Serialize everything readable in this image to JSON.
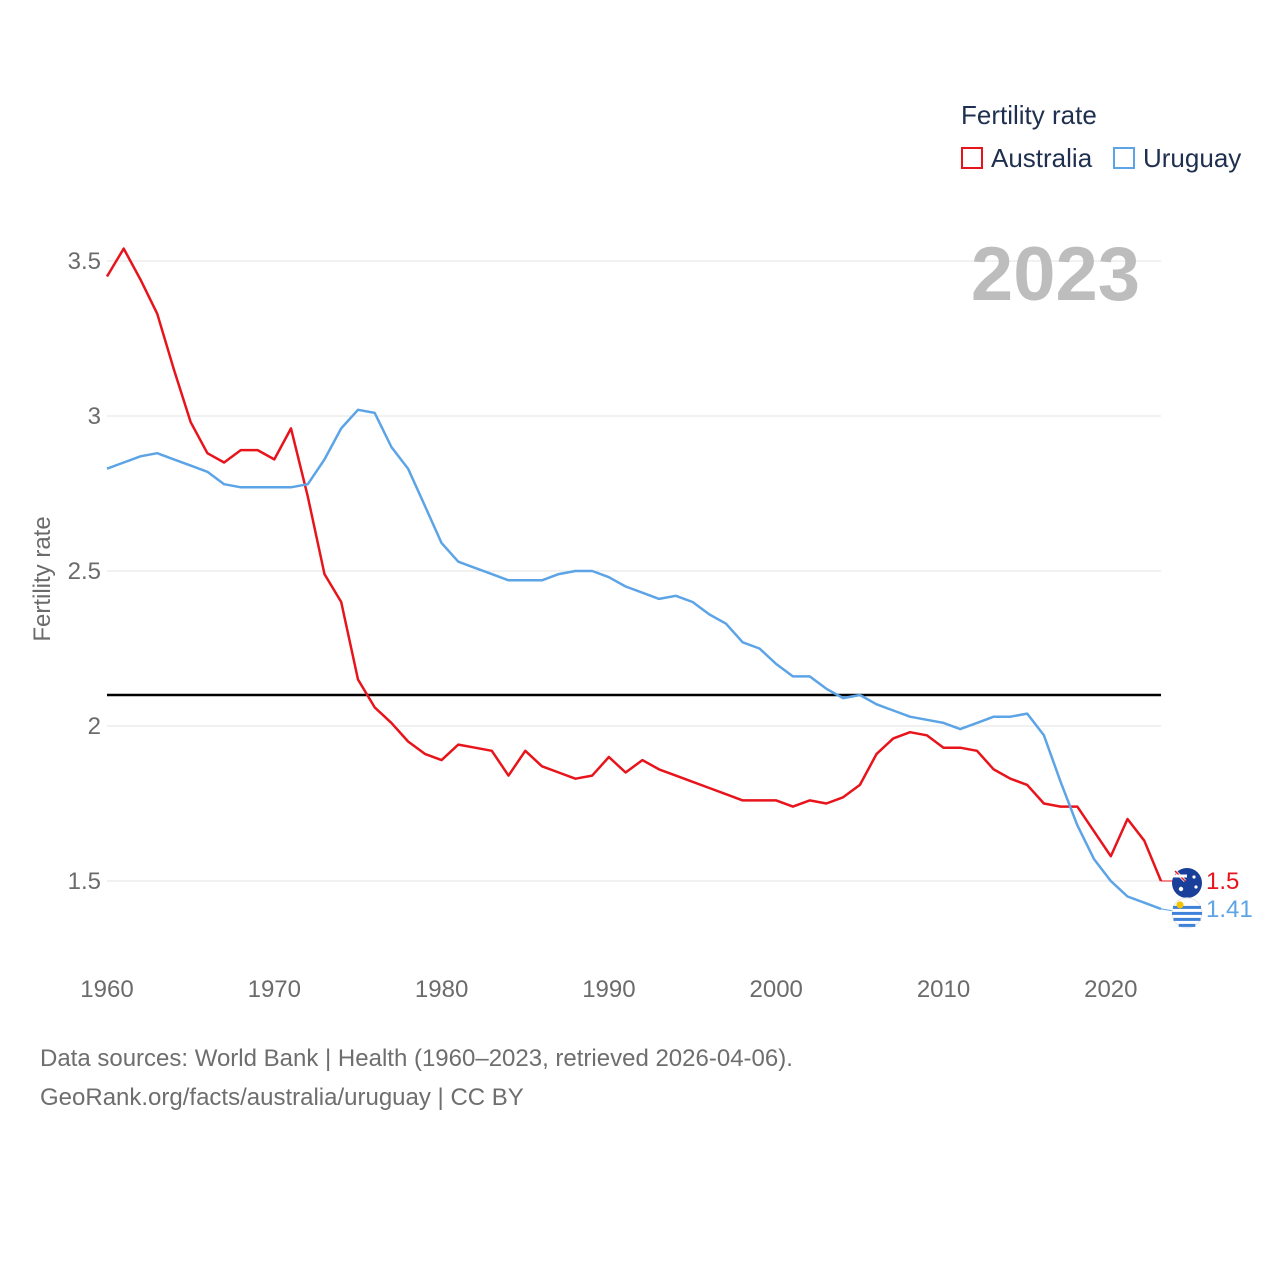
{
  "legend": {
    "title": "Fertility rate",
    "items": [
      {
        "label": "Australia",
        "color": "#e8141b"
      },
      {
        "label": "Uruguay",
        "color": "#5ca4e6"
      }
    ]
  },
  "footer": {
    "line1": "Data sources: World Bank | Health (1960–2023, retrieved 2026-04-06).",
    "line2": "GeoRank.org/facts/australia/uruguay | CC BY"
  },
  "chart_data": {
    "type": "line",
    "title": "Fertility rate",
    "year_label": "2023",
    "xlabel": "",
    "ylabel": "Fertility rate",
    "xlim": [
      1960,
      2023
    ],
    "ylim": [
      1.3,
      3.6
    ],
    "x_ticks": [
      1960,
      1970,
      1980,
      1990,
      2000,
      2010,
      2020
    ],
    "y_ticks": [
      1.5,
      2,
      2.5,
      3,
      3.5
    ],
    "y_tick_labels": [
      "1.5",
      "2",
      "2.5",
      "3",
      "3.5"
    ],
    "reference_line": 2.1,
    "x": [
      1960,
      1961,
      1962,
      1963,
      1964,
      1965,
      1966,
      1967,
      1968,
      1969,
      1970,
      1971,
      1972,
      1973,
      1974,
      1975,
      1976,
      1977,
      1978,
      1979,
      1980,
      1981,
      1982,
      1983,
      1984,
      1985,
      1986,
      1987,
      1988,
      1989,
      1990,
      1991,
      1992,
      1993,
      1994,
      1995,
      1996,
      1997,
      1998,
      1999,
      2000,
      2001,
      2002,
      2003,
      2004,
      2005,
      2006,
      2007,
      2008,
      2009,
      2010,
      2011,
      2012,
      2013,
      2014,
      2015,
      2016,
      2017,
      2018,
      2019,
      2020,
      2021,
      2022,
      2023
    ],
    "series": [
      {
        "name": "Australia",
        "color": "#e8141b",
        "end_label": "1.5",
        "values": [
          3.45,
          3.54,
          3.44,
          3.33,
          3.15,
          2.98,
          2.88,
          2.85,
          2.89,
          2.89,
          2.86,
          2.96,
          2.74,
          2.49,
          2.4,
          2.15,
          2.06,
          2.01,
          1.95,
          1.91,
          1.89,
          1.94,
          1.93,
          1.92,
          1.84,
          1.92,
          1.87,
          1.85,
          1.83,
          1.84,
          1.9,
          1.85,
          1.89,
          1.86,
          1.84,
          1.82,
          1.8,
          1.78,
          1.76,
          1.76,
          1.76,
          1.74,
          1.76,
          1.75,
          1.77,
          1.81,
          1.91,
          1.96,
          1.98,
          1.97,
          1.93,
          1.93,
          1.92,
          1.86,
          1.83,
          1.81,
          1.75,
          1.74,
          1.74,
          1.66,
          1.58,
          1.7,
          1.63,
          1.5
        ]
      },
      {
        "name": "Uruguay",
        "color": "#5ca4e6",
        "end_label": "1.41",
        "values": [
          2.83,
          2.85,
          2.87,
          2.88,
          2.86,
          2.84,
          2.82,
          2.78,
          2.77,
          2.77,
          2.77,
          2.77,
          2.78,
          2.86,
          2.96,
          3.02,
          3.01,
          2.9,
          2.83,
          2.71,
          2.59,
          2.53,
          2.51,
          2.49,
          2.47,
          2.47,
          2.47,
          2.49,
          2.5,
          2.5,
          2.48,
          2.45,
          2.43,
          2.41,
          2.42,
          2.4,
          2.36,
          2.33,
          2.27,
          2.25,
          2.2,
          2.16,
          2.16,
          2.12,
          2.09,
          2.1,
          2.07,
          2.05,
          2.03,
          2.02,
          2.01,
          1.99,
          2.01,
          2.03,
          2.03,
          2.04,
          1.97,
          1.82,
          1.68,
          1.57,
          1.5,
          1.45,
          1.43,
          1.41
        ]
      }
    ]
  }
}
